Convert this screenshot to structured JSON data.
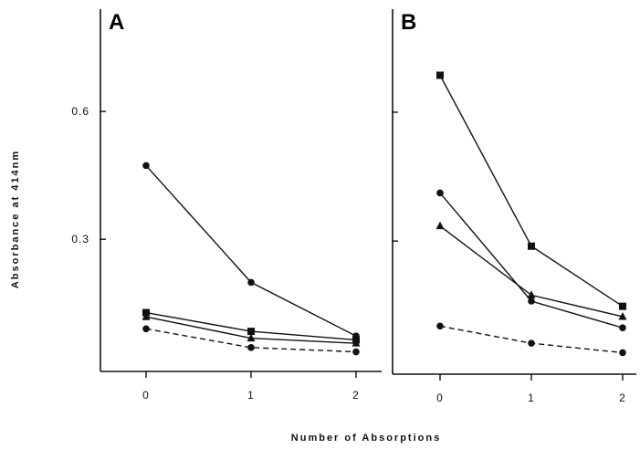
{
  "figure": {
    "ylabel": "Absorbance at 414nm",
    "xlabel": "Number of Absorptions"
  },
  "chart_data": [
    {
      "type": "line",
      "panel_label": "A",
      "x": [
        0,
        1,
        2
      ],
      "xticks": [
        "0",
        "1",
        "2"
      ],
      "yticks": [
        {
          "value": 0.3,
          "label": "0.3"
        },
        {
          "value": 0.6,
          "label": "0.6"
        }
      ],
      "ylim": [
        -0.01,
        0.84
      ],
      "xlim": [
        -0.6,
        2.35
      ],
      "series": [
        {
          "marker": "circle",
          "dash": false,
          "values": [
            0.473,
            0.199,
            0.073
          ]
        },
        {
          "marker": "square",
          "dash": false,
          "values": [
            0.128,
            0.084,
            0.064
          ]
        },
        {
          "marker": "triangle",
          "dash": false,
          "values": [
            0.118,
            0.068,
            0.056
          ]
        },
        {
          "marker": "circle",
          "dash": true,
          "values": [
            0.09,
            0.046,
            0.036
          ]
        }
      ]
    },
    {
      "type": "line",
      "panel_label": "B",
      "x": [
        0,
        1,
        2
      ],
      "xticks": [
        "0",
        "1",
        "2"
      ],
      "yticks": [
        {
          "value": 0.3,
          "label": ""
        },
        {
          "value": 0.6,
          "label": ""
        }
      ],
      "ylim": [
        -0.01,
        0.84
      ],
      "xlim": [
        -0.6,
        2.35
      ],
      "series": [
        {
          "marker": "square",
          "dash": false,
          "values": [
            0.686,
            0.288,
            0.148
          ]
        },
        {
          "marker": "circle",
          "dash": false,
          "values": [
            0.412,
            0.16,
            0.098
          ]
        },
        {
          "marker": "triangle",
          "dash": false,
          "values": [
            0.335,
            0.174,
            0.124
          ]
        },
        {
          "marker": "circle",
          "dash": true,
          "values": [
            0.102,
            0.062,
            0.04
          ]
        }
      ]
    }
  ]
}
